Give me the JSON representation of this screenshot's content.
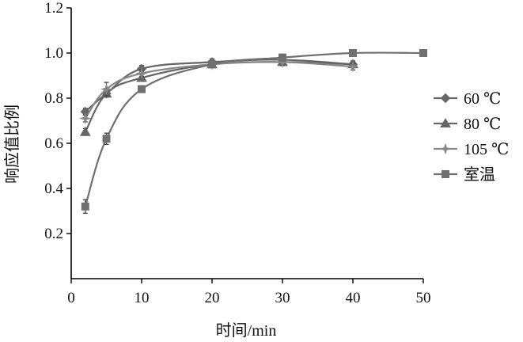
{
  "chart_data": {
    "type": "line",
    "title": "",
    "xlabel": "时间/min",
    "ylabel": "响应值比例",
    "xlim": [
      0,
      50
    ],
    "ylim": [
      0,
      1.2
    ],
    "xticks": [
      0,
      10,
      20,
      30,
      40,
      50
    ],
    "yticks": [
      0.2,
      0.4,
      0.6,
      0.8,
      1.0,
      1.2
    ],
    "xtick_labels": [
      "0",
      "10",
      "20",
      "30",
      "40",
      "50"
    ],
    "ytick_labels": [
      "0.2",
      "0.4",
      "0.6",
      "0.8",
      "1.0",
      "1.2"
    ],
    "grid": false,
    "legend_position": "right",
    "series": [
      {
        "name": "60 ℃",
        "marker": "diamond",
        "color": "#666666",
        "x": [
          2,
          5,
          10,
          20,
          30,
          40
        ],
        "y": [
          0.74,
          0.82,
          0.93,
          0.96,
          0.97,
          0.95
        ],
        "err": [
          0.015,
          0.015,
          0.015,
          0.015,
          0.015,
          0.015
        ]
      },
      {
        "name": "80 ℃",
        "marker": "triangle",
        "color": "#666666",
        "x": [
          2,
          5,
          10,
          20,
          30,
          40
        ],
        "y": [
          0.65,
          0.82,
          0.89,
          0.95,
          0.96,
          0.95
        ],
        "err": [
          0.015,
          0.015,
          0.015,
          0.015,
          0.015,
          0.015
        ]
      },
      {
        "name": "105 ℃",
        "marker": "star",
        "color": "#888888",
        "x": [
          2,
          5,
          10,
          20,
          30,
          40
        ],
        "y": [
          0.71,
          0.84,
          0.91,
          0.95,
          0.96,
          0.94
        ],
        "err": [
          0.015,
          0.03,
          0.015,
          0.015,
          0.015,
          0.015
        ]
      },
      {
        "name": "室温",
        "marker": "square",
        "color": "#707070",
        "x": [
          2,
          5,
          10,
          20,
          30,
          40,
          50
        ],
        "y": [
          0.32,
          0.62,
          0.84,
          0.95,
          0.98,
          1.0,
          1.0
        ],
        "err": [
          0.03,
          0.025,
          0.015,
          0.015,
          0.015,
          0.015,
          0.015
        ]
      }
    ]
  }
}
